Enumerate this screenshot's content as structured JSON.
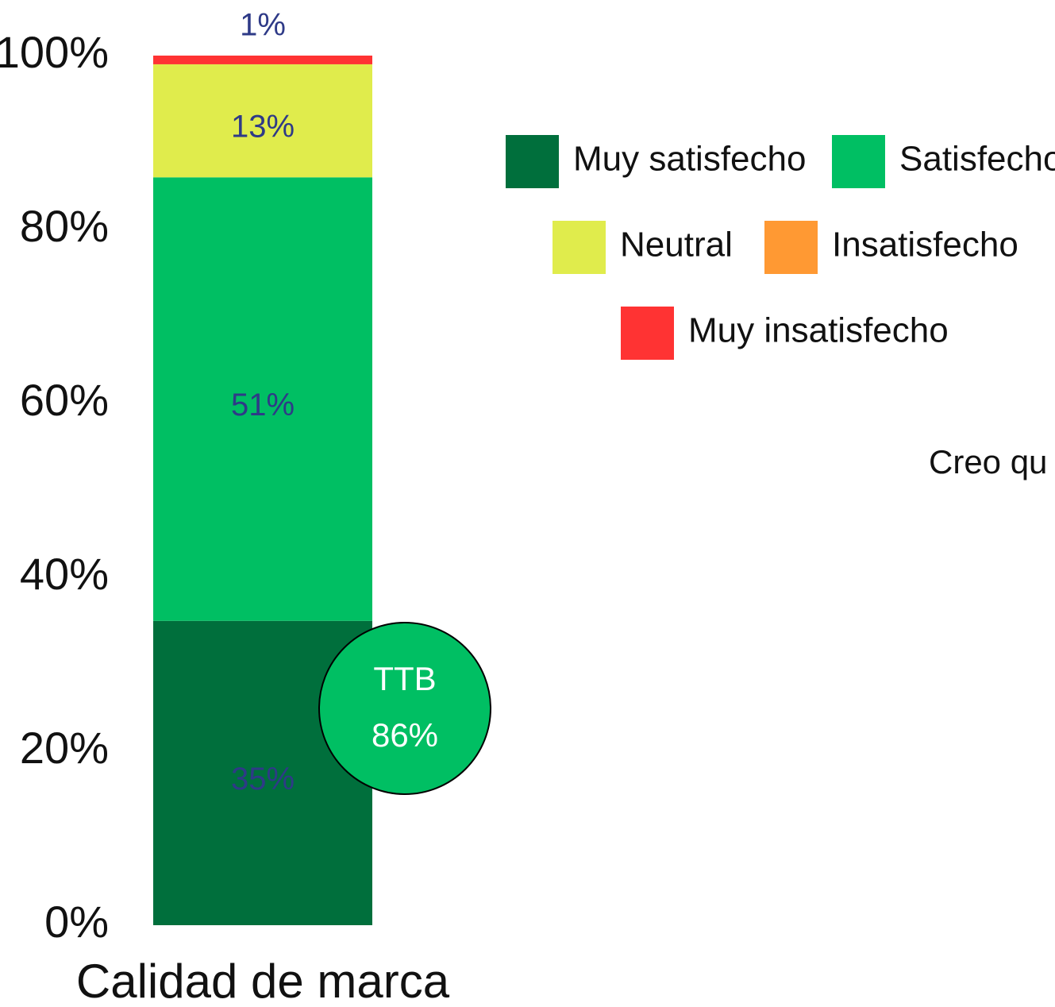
{
  "chart_data": {
    "type": "stacked-bar",
    "categories": [
      "Calidad de marca"
    ],
    "series": [
      {
        "name": "Muy satisfecho",
        "color": "#006f3c",
        "values": [
          35
        ],
        "value_labels": [
          "35%"
        ]
      },
      {
        "name": "Satisfecho",
        "color": "#00bf63",
        "values": [
          51
        ],
        "value_labels": [
          "51%"
        ]
      },
      {
        "name": "Neutral",
        "color": "#e0ec4c",
        "values": [
          13
        ],
        "value_labels": [
          "13%"
        ]
      },
      {
        "name": "Insatisfecho",
        "color": "#ff9933",
        "values": [
          0
        ],
        "value_labels": [
          null
        ]
      },
      {
        "name": "Muy insatisfecho",
        "color": "#ff3333",
        "values": [
          1
        ],
        "value_labels": [
          "1%"
        ]
      }
    ],
    "ylim": [
      0,
      100
    ],
    "yticks": [
      {
        "value": 0,
        "label": "0%"
      },
      {
        "value": 20,
        "label": "20%"
      },
      {
        "value": 40,
        "label": "40%"
      },
      {
        "value": 60,
        "label": "60%"
      },
      {
        "value": 80,
        "label": "80%"
      },
      {
        "value": 100,
        "label": "100%"
      }
    ],
    "annotations": {
      "ttb_label": "TTB",
      "ttb_value": "86%",
      "note": "Creo qu"
    }
  }
}
